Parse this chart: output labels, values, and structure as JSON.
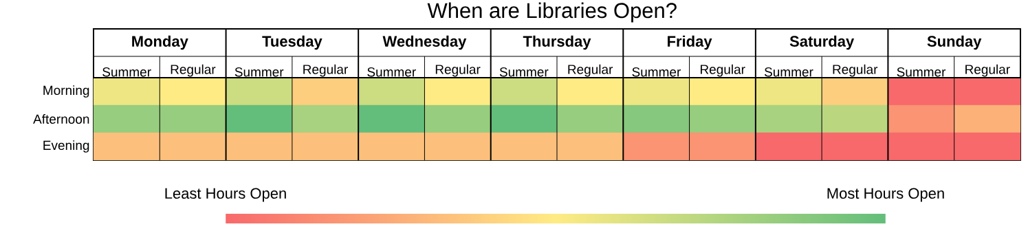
{
  "chart_data": {
    "type": "heatmap",
    "title": "When are Libraries Open?",
    "categories": [
      "Summer",
      "Regular",
      "Summer",
      "Regular",
      "Summer",
      "Regular",
      "Summer",
      "Regular",
      "Summer",
      "Regular",
      "Summer",
      "Regular",
      "Summer",
      "Regular"
    ],
    "y_categories": [
      "Morning",
      "Afternoon",
      "Evening"
    ],
    "cells": [
      [
        6,
        5.5,
        7,
        4.5,
        7,
        5.5,
        7,
        5.5,
        6,
        5.5,
        6,
        4.5,
        1,
        1
      ],
      [
        8.5,
        8.5,
        10,
        8,
        10,
        8.5,
        10,
        8.5,
        9,
        8.5,
        8,
        7.5,
        2.5,
        3.5
      ],
      [
        4,
        4,
        4,
        4,
        4,
        4,
        4,
        4,
        2.5,
        2.5,
        1,
        1,
        1,
        1
      ]
    ],
    "clim": [
      1,
      10
    ],
    "cticks": [
      {
        "value": 1,
        "label": "Least Hours Open"
      },
      {
        "value": 10,
        "label": "Most Hours Open"
      }
    ],
    "annotations": [
      "Monday",
      "Tuesday",
      "Wednesday",
      "Thursday",
      "Friday",
      "Saturday",
      "Sunday"
    ]
  }
}
